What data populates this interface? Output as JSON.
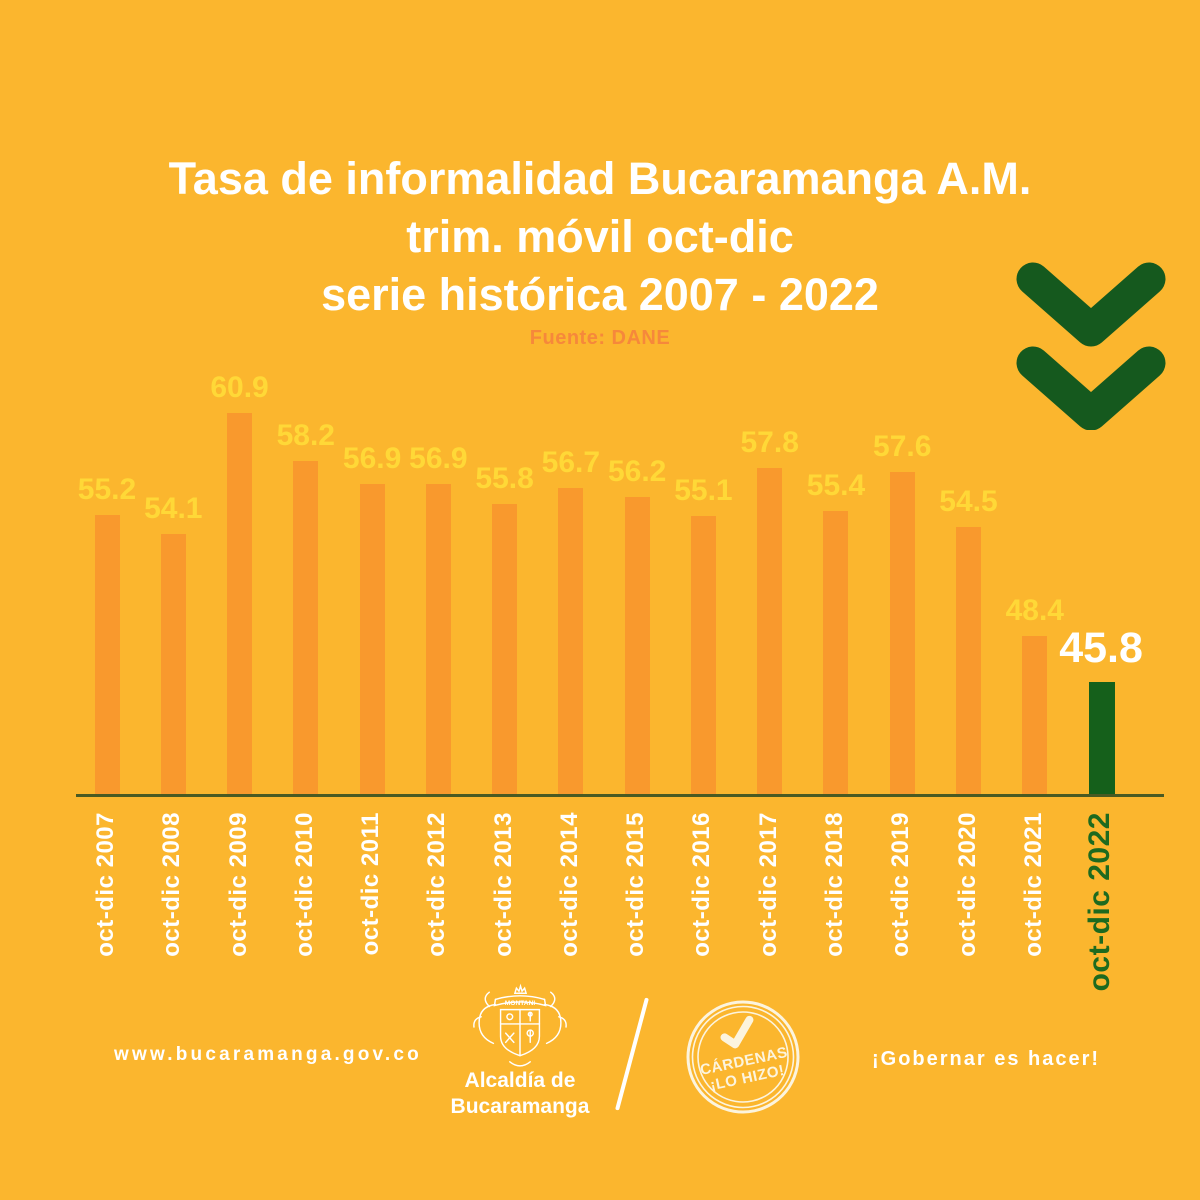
{
  "header": {
    "title_line1": "Tasa de informalidad Bucaramanga A.M.",
    "title_line2": "trim. móvil oct-dic",
    "title_line3": "serie histórica 2007 - 2022",
    "source": "Fuente: DANE"
  },
  "chart_data": {
    "type": "bar",
    "title": "Tasa de informalidad Bucaramanga A.M. trim. móvil oct-dic serie histórica 2007 - 2022",
    "source": "Fuente: DANE",
    "categories": [
      "oct-dic 2007",
      "oct-dic 2008",
      "oct-dic 2009",
      "oct-dic 2010",
      "oct-dic 2011",
      "oct-dic 2012",
      "oct-dic 2013",
      "oct-dic 2014",
      "oct-dic 2015",
      "oct-dic 2016",
      "oct-dic 2017",
      "oct-dic 2018",
      "oct-dic 2019",
      "oct-dic 2020",
      "oct-dic 2021",
      "oct-dic 2022"
    ],
    "values": [
      55.2,
      54.1,
      60.9,
      58.2,
      56.9,
      56.9,
      55.8,
      56.7,
      56.2,
      55.1,
      57.8,
      55.4,
      57.6,
      54.5,
      48.4,
      45.8
    ],
    "highlight_index": 15,
    "xlabel": "",
    "ylabel": "",
    "ylim": [
      40,
      62
    ],
    "grid": false,
    "legend": "none",
    "value_labels_shown": true
  },
  "icons": {
    "top_right": "double-chevron-down",
    "stamp_check": "checkmark"
  },
  "footer": {
    "website": "www.bucaramanga.gov.co",
    "crest_banner": "MONTANI",
    "crest_caption_line1": "Alcaldía de",
    "crest_caption_line2": "Bucaramanga",
    "stamp_text_line1": "CÁRDENAS",
    "stamp_text_line2": "¡LO HIZO!",
    "slogan": "¡Gobernar es hacer!"
  },
  "colors": {
    "bg": "#FBB62E",
    "bar": "#F9992D",
    "bar_highlight": "#15601B",
    "value_label": "#FFD837",
    "value_label_highlight": "#FFFFFF",
    "x_label": "#FFFFFF",
    "x_label_highlight": "#1D6A1F",
    "axis_line": "#4A5A22",
    "title": "#FFFFFF",
    "source": "#F6883B",
    "green_icon": "#15591E",
    "stamp": "#FCF4DE"
  }
}
